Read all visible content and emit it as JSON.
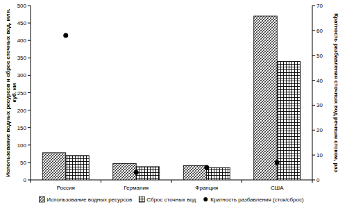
{
  "chart_data": {
    "type": "bar",
    "categories": [
      "Россия",
      "Германия",
      "Франция",
      "США"
    ],
    "series": [
      {
        "name": "Использование водных ресурсов",
        "type": "bar",
        "color": "#000000",
        "values": [
          78,
          47,
          41,
          470
        ]
      },
      {
        "name": "Сброс сточных вод",
        "type": "bar",
        "color": "#000000",
        "values": [
          70,
          38,
          35,
          340
        ]
      },
      {
        "name": "Кратность разбавления (сток/сброс)",
        "type": "scatter",
        "axis": "y2",
        "marker": "circle",
        "color": "#000000",
        "values": [
          58,
          3,
          5,
          7
        ]
      }
    ],
    "y_label": "Использование водных ресурсов и сброс сточных вод, млн. куб. км",
    "y2_label": "Кратность разбавления сточных вод речным стоком, раз",
    "ylim": [
      0,
      500
    ],
    "yticks": [
      0,
      50,
      100,
      150,
      200,
      250,
      300,
      350,
      400,
      450,
      500
    ],
    "y2lim": [
      0,
      70
    ],
    "y2ticks": [
      0,
      10,
      20,
      30,
      40,
      50,
      60,
      70
    ],
    "grid": false,
    "legend": "bottom"
  }
}
